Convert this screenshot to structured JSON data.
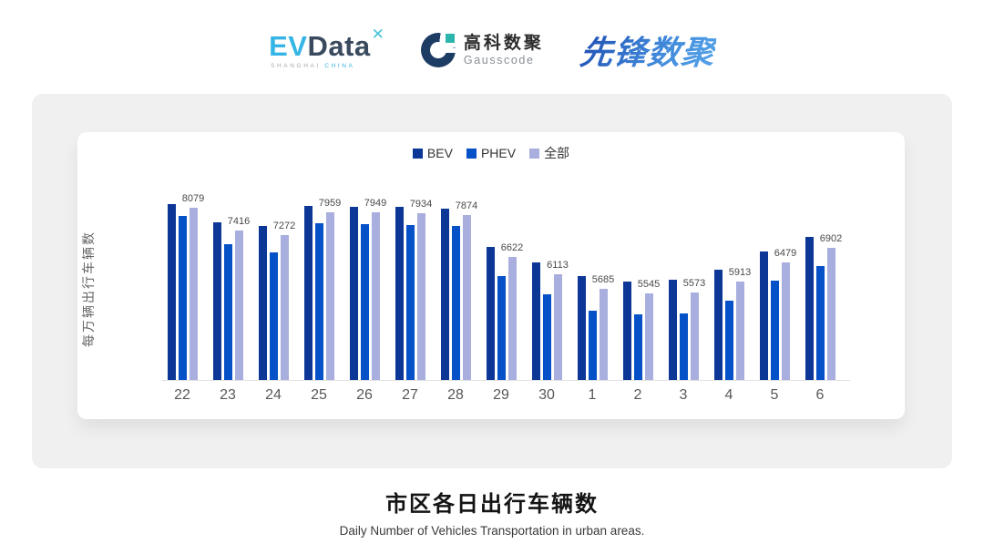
{
  "header": {
    "evdata": {
      "ev": "EV",
      "data": "Data",
      "mark": "✕",
      "sub_left": "SHANGHAI",
      "sub_right": "CHINA"
    },
    "gausscode": {
      "cn": "高科数聚",
      "en": "Gausscode"
    },
    "xianfeng": {
      "text": "先锋数聚"
    }
  },
  "chart_data": {
    "type": "bar",
    "categories": [
      "22",
      "23",
      "24",
      "25",
      "26",
      "27",
      "28",
      "29",
      "30",
      "1",
      "2",
      "3",
      "4",
      "5",
      "6"
    ],
    "series": [
      {
        "name": "BEV",
        "color": "#0d3796",
        "values": [
          8200,
          7650,
          7540,
          8130,
          8115,
          8115,
          8045,
          6915,
          6470,
          6055,
          5905,
          5965,
          6260,
          6800,
          7220
        ],
        "labeled": false,
        "note": "values estimated from bar heights"
      },
      {
        "name": "PHEV",
        "color": "#0551c8",
        "values": [
          7845,
          7005,
          6780,
          7625,
          7595,
          7575,
          7540,
          6080,
          5530,
          5055,
          4940,
          4965,
          5350,
          5930,
          6370
        ],
        "labeled": false,
        "note": "values estimated from bar heights"
      },
      {
        "name": "全部",
        "color": "#a8aede",
        "values": [
          8079,
          7416,
          7272,
          7959,
          7949,
          7934,
          7874,
          6622,
          6113,
          5685,
          5545,
          5573,
          5913,
          6479,
          6902
        ],
        "labeled": true,
        "note": "values shown as data labels on chart"
      }
    ],
    "ylabel": "每万辆出行车辆数",
    "xlabel": "",
    "ylim": [
      3000,
      9000
    ],
    "grid": false,
    "legend_position": "top",
    "axis_line_color": "#e2e2e2"
  },
  "footer": {
    "title": "市区各日出行车辆数",
    "subtitle": "Daily Number of Vehicles Transportation in urban areas."
  },
  "colors": {
    "panel_bg": "#f0f0f0",
    "card_bg": "#ffffff",
    "brand_sky_blue": "#35b5e5",
    "brand_dark_slate": "#3a4a5e",
    "brand_navy": "#1d3c63",
    "brand_teal": "#2cb5ad",
    "brand_gradient_blue": "#2e6fc8"
  }
}
